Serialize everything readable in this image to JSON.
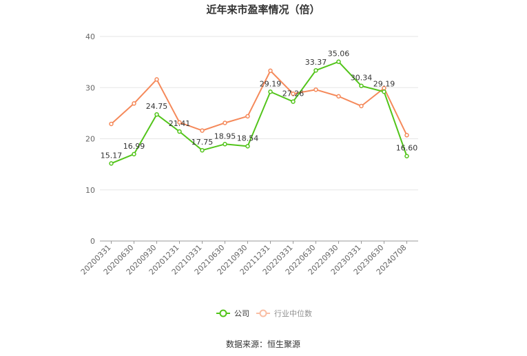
{
  "chart_data": {
    "type": "line",
    "title": "近年来市盈率情况（倍）",
    "categories": [
      "20200331",
      "20200630",
      "20200930",
      "20201231",
      "20210331",
      "20210630",
      "20210930",
      "20211231",
      "20220331",
      "20220630",
      "20220930",
      "20230331",
      "20230630",
      "20240708"
    ],
    "series": [
      {
        "name": "公司",
        "color": "#52c41a",
        "values": [
          15.17,
          16.99,
          24.75,
          21.41,
          17.75,
          18.95,
          18.54,
          29.19,
          27.26,
          33.37,
          35.06,
          30.34,
          29.19,
          16.6
        ],
        "labels": [
          "15.17",
          "16.99",
          "24.75",
          "21.41",
          "17.75",
          "18.95",
          "18.54",
          "29.19",
          "27.26",
          "33.37",
          "35.06",
          "30.34",
          "29.19",
          "16.60"
        ]
      },
      {
        "name": "行业中位数",
        "color": "#f5895a",
        "values": [
          22.9,
          26.9,
          31.6,
          23.2,
          21.6,
          23.1,
          24.4,
          33.3,
          28.8,
          29.6,
          28.3,
          26.4,
          29.9,
          20.7
        ]
      }
    ],
    "ylim": [
      0,
      40
    ],
    "yticks": [
      0,
      10,
      20,
      30,
      40
    ],
    "grid": true,
    "legend": "bottom-center"
  },
  "source_text": "数据来源：恒生聚源"
}
